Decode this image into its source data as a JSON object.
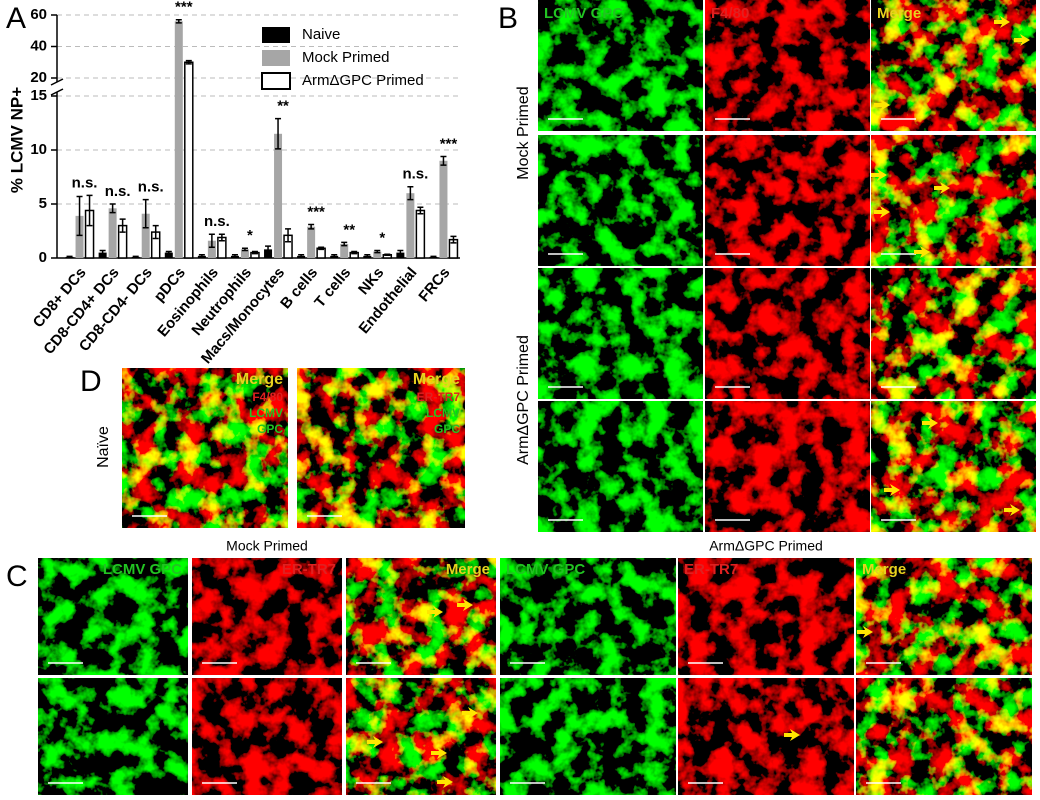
{
  "chart_data": {
    "type": "bar",
    "ylabel": "% LCMV NP+",
    "categories": [
      "CD8+ DCs",
      "CD8-CD4+ DCs",
      "CD8-CD4- DCs",
      "pDCs",
      "Eosinophils",
      "Neutrophils",
      "Macs/Monocytes",
      "B cells",
      "T cells",
      "NKs",
      "Endothelial",
      "FRCs"
    ],
    "series": [
      {
        "name": "Naive",
        "color": "#000000",
        "values": [
          0.1,
          0.5,
          0.1,
          0.5,
          0.2,
          0.2,
          0.8,
          0.2,
          0.2,
          0.2,
          0.5,
          0.1
        ],
        "errors": [
          0.05,
          0.2,
          0.05,
          0.1,
          0.1,
          0.1,
          0.3,
          0.1,
          0.1,
          0.1,
          0.2,
          0.05
        ]
      },
      {
        "name": "Mock Primed",
        "color": "#a6a6a6",
        "values": [
          3.9,
          4.6,
          4.1,
          56,
          1.6,
          0.8,
          11.5,
          2.9,
          1.3,
          0.6,
          6.0,
          9.0
        ],
        "errors": [
          1.8,
          0.4,
          1.3,
          1.0,
          0.6,
          0.1,
          1.4,
          0.2,
          0.15,
          0.1,
          0.6,
          0.4
        ]
      },
      {
        "name": "ArmΔGPC Primed",
        "color": "#ffffff",
        "edgecolor": "#000000",
        "values": [
          4.4,
          3.0,
          2.4,
          30,
          1.9,
          0.5,
          2.1,
          0.9,
          0.5,
          0.3,
          4.4,
          1.7
        ],
        "errors": [
          1.4,
          0.6,
          0.6,
          1.0,
          0.3,
          0.1,
          0.6,
          0.1,
          0.1,
          0.05,
          0.3,
          0.3
        ]
      }
    ],
    "annotations": [
      "n.s.",
      "n.s.",
      "n.s.",
      "***",
      "n.s.",
      "*",
      "**",
      "***",
      "**",
      "*",
      "n.s.",
      "***"
    ],
    "ylim": [
      0,
      60
    ],
    "ybreak": [
      15,
      20
    ],
    "yticks": [
      0,
      5,
      10,
      15,
      20,
      40,
      60
    ],
    "grid": true,
    "legend": "upper right"
  },
  "panel_labels": [
    "A",
    "B",
    "C",
    "D"
  ],
  "panel_b": {
    "columns": [
      "LCMV GPC",
      "F4/80",
      "Merge"
    ],
    "rows": [
      "Mock Primed",
      "ArmΔGPC Primed"
    ]
  },
  "panel_c": {
    "groups": [
      {
        "title": "Mock Primed",
        "columns": [
          "LCMV GPC",
          "ER-TR7",
          "Merge"
        ]
      },
      {
        "title": "ArmΔGPC Primed",
        "columns": [
          "LCMV GPC",
          "ER-TR7",
          "Merge"
        ]
      }
    ]
  },
  "panel_d": {
    "row": "Naïve",
    "images": [
      [
        "Merge",
        "F4/80",
        "LCMV",
        "GPC"
      ],
      [
        "Merge",
        "ER-TR7",
        "LCMV",
        "GPC"
      ]
    ]
  }
}
